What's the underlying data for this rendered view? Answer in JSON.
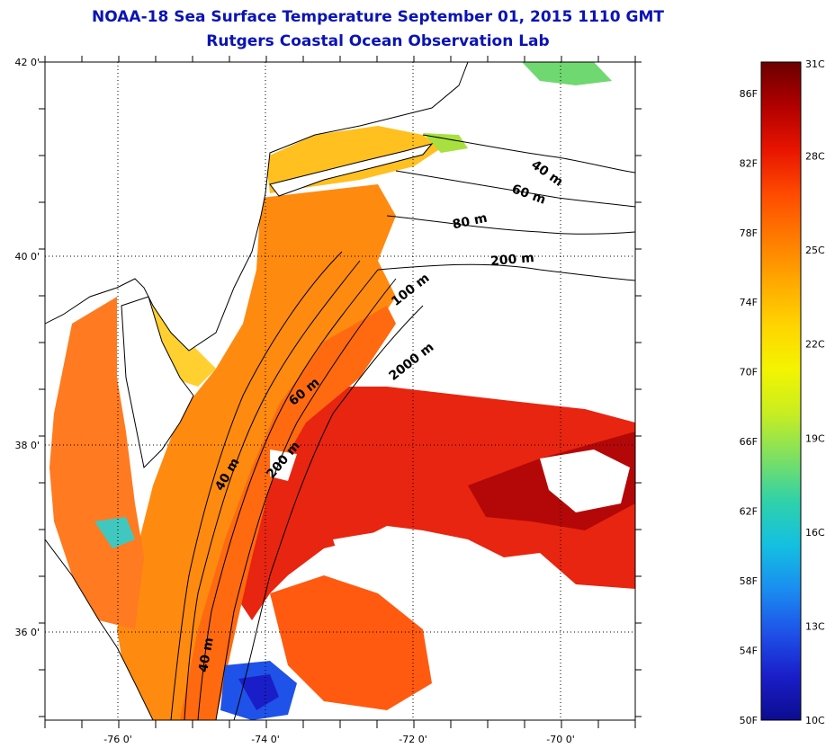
{
  "title": "NOAA-18 Sea Surface Temperature September 01, 2015 1110 GMT",
  "subtitle": "Rutgers Coastal Ocean Observation Lab",
  "map": {
    "lat_ticks": [
      "42 0'",
      "40 0'",
      "38 0'",
      "36 0'"
    ],
    "lon_ticks": [
      "-76 0'",
      "-74 0'",
      "-72 0'",
      "-70 0'"
    ],
    "depth_labels": [
      "40 m",
      "60 m",
      "80 m",
      "200 m",
      "100 m",
      "2000 m",
      "60 m",
      "200 m",
      "40 m",
      "40 m"
    ]
  },
  "colorbar": {
    "fahrenheit_labels": [
      "86F",
      "82F",
      "78F",
      "74F",
      "70F",
      "66F",
      "62F",
      "58F",
      "54F",
      "50F"
    ],
    "celsius_labels": [
      "31C",
      "28C",
      "25C",
      "22C",
      "19C",
      "16C",
      "13C",
      "10C"
    ],
    "colors": [
      "#6b0000",
      "#b00000",
      "#e81400",
      "#ff4a00",
      "#ff7a00",
      "#ffa800",
      "#ffd400",
      "#f4f400",
      "#c8ee20",
      "#7ee060",
      "#30d2a8",
      "#14c0e0",
      "#1a8ef0",
      "#1e52e8",
      "#1a1ec8",
      "#0c0c90"
    ]
  }
}
